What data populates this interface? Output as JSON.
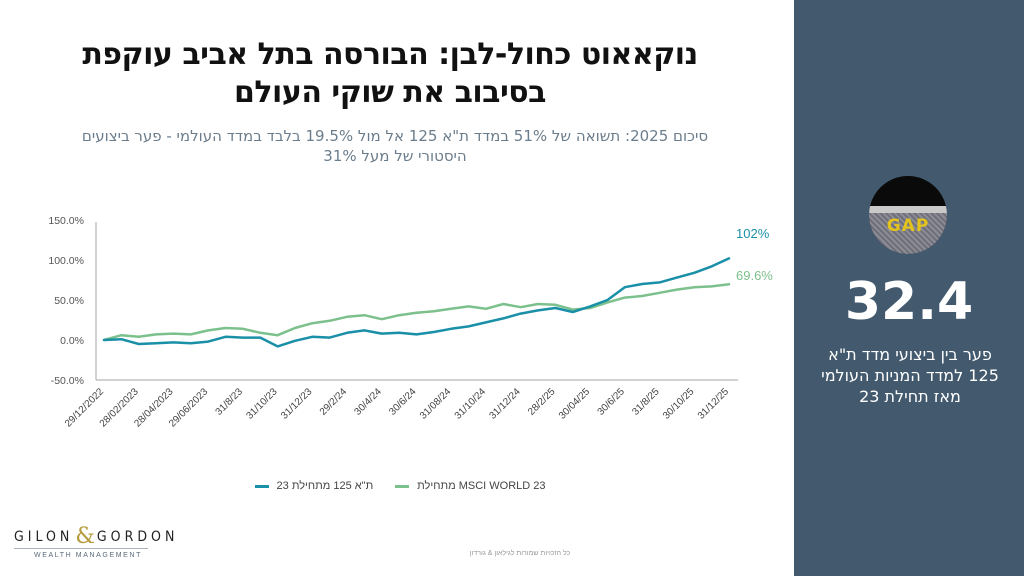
{
  "header": {
    "title_line1": "נוקאאוט כחול-לבן: הבורסה בתל אביב עוקפת",
    "title_line2": "בסיבוב את שוקי העולם",
    "subtitle_line1": "סיכום 2025: תשואה של 51% במדד ת\"א 125 אל מול 19.5% בלבד במדד העולמי - פער ביצועים",
    "subtitle_line2": "היסטורי של מעל 31%"
  },
  "sidebar": {
    "image_label": "GAP",
    "image_icon": "gap-road-image",
    "big_number": "32.4",
    "description_line1": "פער בין ביצועי מדד ת\"א",
    "description_line2": "125 למדד המניות העולמי",
    "description_line3": "מאז תחילת 23"
  },
  "logo": {
    "left": "GILON",
    "amp": "&",
    "right": "GORDON",
    "tagline": "WEALTH MANAGEMENT"
  },
  "footer": {
    "copyright": "כל הזכויות שמורות לגילאון & גורדון"
  },
  "colors": {
    "ta125": "#1a8fa8",
    "msci": "#7cc08c",
    "sidebar_bg": "#435a6e",
    "axis": "#a6a6a6"
  },
  "chart_data": {
    "type": "line",
    "title": "",
    "xlabel": "",
    "ylabel": "",
    "ylim": [
      -50,
      150
    ],
    "yticks": [
      -50,
      0,
      50,
      100,
      150
    ],
    "ytick_labels": [
      "-50.0%",
      "0.0%",
      "50.0%",
      "100.0%",
      "150.0%"
    ],
    "grid": false,
    "legend_position": "bottom",
    "xtick_labels": [
      "29/12/2022",
      "28/02/2023",
      "28/04/2023",
      "29/06/2023",
      "31/8/23",
      "31/10/23",
      "31/12/23",
      "29/2/24",
      "30/4/24",
      "30/6/24",
      "31/08/24",
      "31/10/24",
      "31/12/24",
      "28/2/25",
      "30/04/25",
      "30/6/25",
      "31/8/25",
      "30/10/25",
      "31/12/25"
    ],
    "x_count": 37,
    "series": [
      {
        "name": "ת\"א 125 מתחילת 23",
        "color": "#1a8fa8",
        "end_label": "102%",
        "values": [
          0,
          1,
          -5,
          -4,
          -3,
          -4,
          -2,
          4,
          3,
          3,
          -8,
          -1,
          4,
          3,
          9,
          12,
          8,
          9,
          7,
          10,
          14,
          17,
          22,
          27,
          33,
          37,
          40,
          35,
          42,
          50,
          66,
          70,
          72,
          78,
          84,
          92,
          102
        ]
      },
      {
        "name": "MSCI WORLD 23 מתחילת",
        "color": "#7cc08c",
        "end_label": "69.6%",
        "values": [
          0,
          6,
          4,
          7,
          8,
          7,
          12,
          15,
          14,
          9,
          6,
          15,
          21,
          24,
          29,
          31,
          26,
          31,
          34,
          36,
          39,
          42,
          39,
          45,
          41,
          45,
          44,
          38,
          40,
          47,
          53,
          55,
          59,
          63,
          66,
          67,
          69.6
        ]
      }
    ]
  }
}
